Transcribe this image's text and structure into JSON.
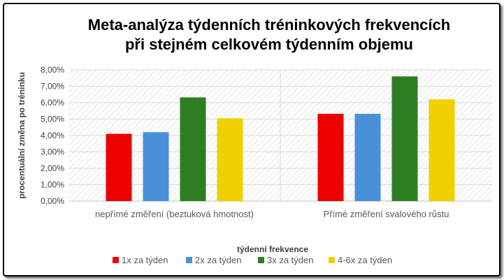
{
  "chart_data": {
    "type": "bar",
    "title_lines": [
      "Meta-analýza týdenních tréninkových frekvencích",
      "při stejném celkovém týdenním objemu"
    ],
    "xlabel": "týdenní frekvence",
    "ylabel": "procentuální změna po tréninku",
    "categories": [
      "nepřímé změření (beztuková hmotnost)",
      "Přímé změření svalového růstu"
    ],
    "ylim": [
      0,
      8
    ],
    "ytick_step": 1,
    "ytick_labels": [
      "0,00%",
      "1,00%",
      "2,00%",
      "3,00%",
      "4,00%",
      "5,00%",
      "6,00%",
      "7,00%",
      "8,00%"
    ],
    "grid": true,
    "legend_position": "bottom",
    "series": [
      {
        "name": "1x za týden",
        "color": "#ee0000",
        "values": [
          4.1,
          5.32
        ]
      },
      {
        "name": "2x za týden",
        "color": "#4a90d9",
        "values": [
          4.2,
          5.32
        ]
      },
      {
        "name": "3x za týden",
        "color": "#2e7d22",
        "values": [
          6.32,
          7.6
        ]
      },
      {
        "name": "4-6x za týden",
        "color": "#f0d000",
        "values": [
          5.05,
          6.2
        ]
      }
    ]
  }
}
